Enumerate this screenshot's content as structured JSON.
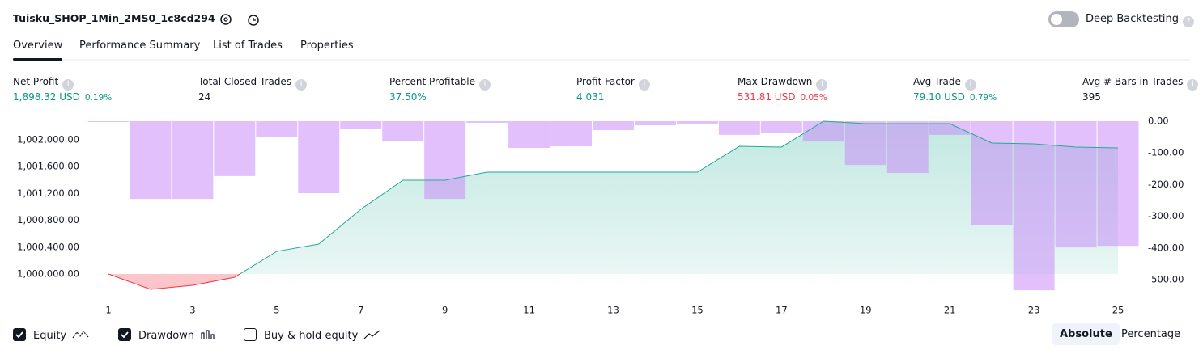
{
  "header": {
    "title": "Tuisku_SHOP_1Min_2MS0_1c8cd294",
    "deep_backtesting": "Deep Backtesting",
    "deep_backtesting_on": false
  },
  "tabs": {
    "items": [
      "Overview",
      "Performance Summary",
      "List of Trades",
      "Properties"
    ],
    "selected": 0
  },
  "stats": [
    {
      "label": "Net Profit",
      "value": "1,898.32 USD",
      "percent": "0.19%",
      "color": "#089981"
    },
    {
      "label": "Total Closed Trades",
      "value": "24",
      "color": "#131722"
    },
    {
      "label": "Percent Profitable",
      "value": "37.50%",
      "color": "#089981"
    },
    {
      "label": "Profit Factor",
      "value": "4.031",
      "color": "#089981"
    },
    {
      "label": "Max Drawdown",
      "value": "531.81 USD",
      "percent": "0.05%",
      "color": "#f23645"
    },
    {
      "label": "Avg Trade",
      "value": "79.10 USD",
      "percent": "0.79%",
      "color": "#089981"
    },
    {
      "label": "Avg # Bars in Trades",
      "value": "395",
      "color": "#131722"
    }
  ],
  "chart_data": {
    "type": "line",
    "x": [
      1,
      2,
      3,
      4,
      5,
      6,
      7,
      8,
      9,
      10,
      11,
      12,
      13,
      14,
      15,
      16,
      17,
      18,
      19,
      20,
      21,
      22,
      23,
      24,
      25
    ],
    "xlim": [
      0.5,
      25.5
    ],
    "xticks": [
      1,
      3,
      5,
      7,
      9,
      11,
      13,
      15,
      17,
      19,
      21,
      23,
      25
    ],
    "ylim": [
      999687,
      1002277
    ],
    "yticks": [
      {
        "value": 1000000,
        "label": "1,000,000.00"
      },
      {
        "value": 1000400,
        "label": "1,000,400.00"
      },
      {
        "value": 1000800,
        "label": "1,000,800.00"
      },
      {
        "value": 1001200,
        "label": "1,001,200.00"
      },
      {
        "value": 1001600,
        "label": "1,001,600.00"
      },
      {
        "value": 1002000,
        "label": "1,002,000.00"
      }
    ],
    "y2lim": [
      -548,
      0
    ],
    "y2ticks": [
      {
        "value": 0,
        "label": "0.00"
      },
      {
        "value": -100,
        "label": "-100.00"
      },
      {
        "value": -200,
        "label": "-200.00"
      },
      {
        "value": -300,
        "label": "-300.00"
      },
      {
        "value": -400,
        "label": "-400.00"
      },
      {
        "value": -500,
        "label": "-500.00"
      }
    ],
    "grid": false,
    "series": [
      {
        "name": "Equity",
        "color": "#22ab94",
        "below_color": "#f23645",
        "visible": true,
        "style": "line",
        "values": [
          1000000,
          999771,
          999831,
          999952,
          1000337,
          1000446,
          1000964,
          1001398,
          1001398,
          1001518,
          1001518,
          1001518,
          1001518,
          1001518,
          1001518,
          1001904,
          1001892,
          1002277,
          1002241,
          1002241,
          1002241,
          1001952,
          1001940,
          1001892,
          1001880
        ]
      },
      {
        "name": "Drawdown",
        "color": "#c98df7",
        "visible": true,
        "style": "bar",
        "axis": "y2",
        "values": [
          -2,
          -245,
          -245,
          -173,
          -51,
          -227,
          -23,
          -64,
          -245,
          -5,
          -84,
          -79,
          -28,
          -13,
          -8,
          -43,
          -38,
          -64,
          -138,
          -163,
          -43,
          -327,
          -533,
          -398,
          -393
        ]
      },
      {
        "name": "Buy & hold equity",
        "color": "#131722",
        "visible": false,
        "style": "line",
        "values": [
          null,
          null,
          null,
          null,
          null,
          null,
          null,
          null,
          null,
          null,
          null,
          null,
          null,
          null,
          null,
          null,
          null,
          null,
          null,
          null,
          null,
          null,
          null,
          null,
          null
        ]
      }
    ],
    "scale_options": [
      "Absolute",
      "Percentage"
    ],
    "scale_selected": 0
  }
}
